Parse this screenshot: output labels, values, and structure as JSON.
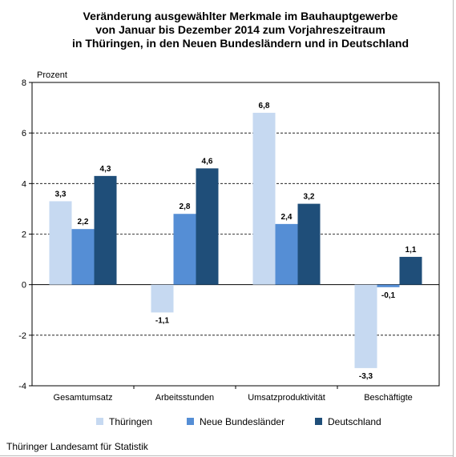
{
  "chart_data": {
    "type": "bar",
    "title_lines": [
      "Veränderung ausgewählter Merkmale im Bauhauptgewerbe",
      "von Januar bis Dezember 2014 zum Vorjahreszeitraum",
      "in Thüringen, in den Neuen Bundesländern und in Deutschland"
    ],
    "ylabel": "Prozent",
    "ylim": [
      -4,
      8
    ],
    "yticks": [
      -4,
      -2,
      0,
      2,
      4,
      6,
      8
    ],
    "categories": [
      "Gesamtumsatz",
      "Arbeitsstunden",
      "Umsatzproduktivität",
      "Beschäftigte"
    ],
    "series": [
      {
        "name": "Thüringen",
        "color": "#c6d9f1",
        "values": [
          3.3,
          -1.1,
          6.8,
          -3.3
        ],
        "labels": [
          "3,3",
          "-1,1",
          "6,8",
          "-3,3"
        ]
      },
      {
        "name": "Neue Bundesländer",
        "color": "#558ed5",
        "values": [
          2.2,
          2.8,
          2.4,
          -0.1
        ],
        "labels": [
          "2,2",
          "2,8",
          "2,4",
          "-0,1"
        ]
      },
      {
        "name": "Deutschland",
        "color": "#1f4e79",
        "values": [
          4.3,
          4.6,
          3.2,
          1.1
        ],
        "labels": [
          "4,3",
          "4,6",
          "3,2",
          "1,1"
        ]
      }
    ],
    "grid": "dashed horizontal",
    "legend": "bottom"
  },
  "footer": {
    "source": "Thüringer Landesamt für Statistik"
  }
}
